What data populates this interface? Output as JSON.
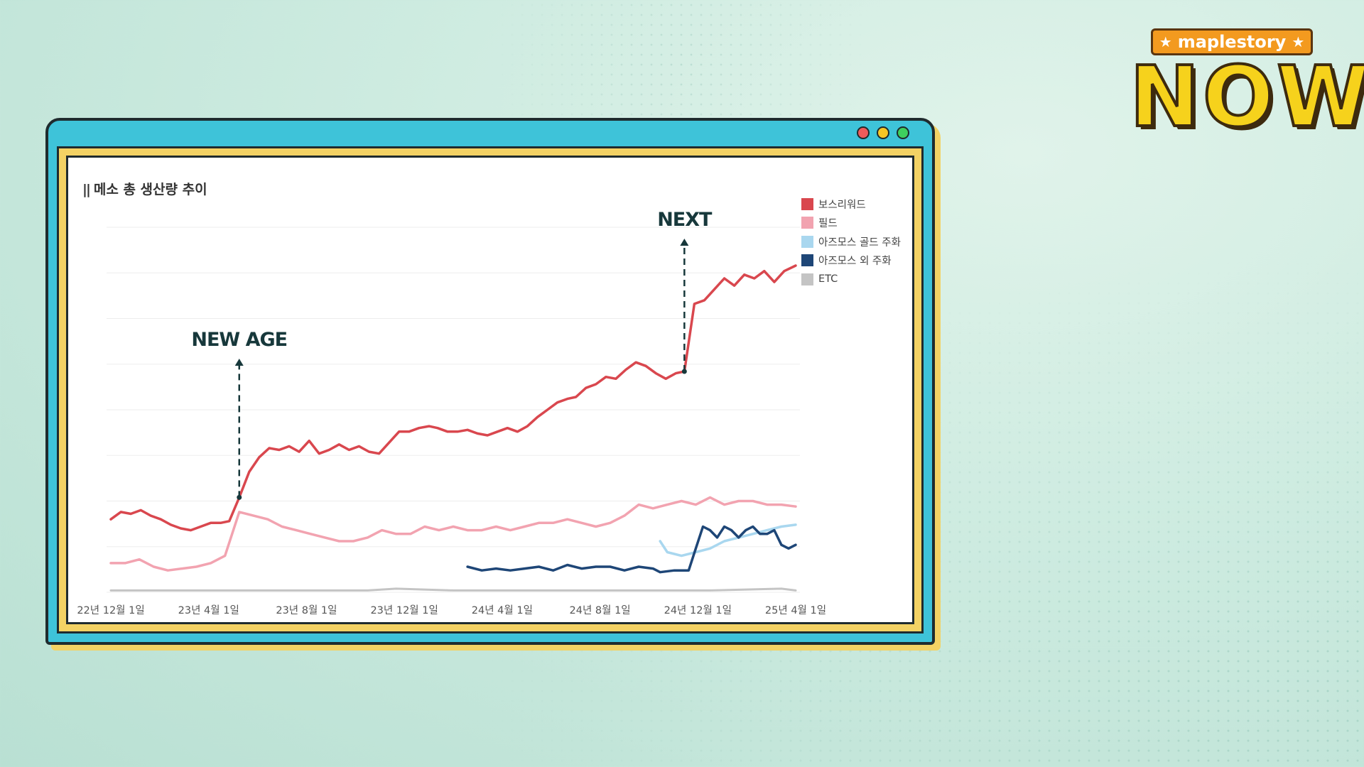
{
  "logo": {
    "badge_text": "maplestory",
    "badge_star": "★",
    "main_text": "NOW"
  },
  "colors": {
    "boss": "#d9474e",
    "field": "#f2a3b0",
    "gold": "#a9d7ef",
    "other": "#1e4677",
    "etc": "#c4c4c4",
    "annotation": "#17383b"
  },
  "chart_data": {
    "type": "line",
    "title": "메소 총 생산량 추이",
    "x_tick_labels": [
      "22년 12월 1일",
      "23년 4월 1일",
      "23년 8월 1일",
      "23년 12월 1일",
      "24년 4월 1일",
      "24년 8월 1일",
      "24년 12월 1일",
      "25년 4월 1일"
    ],
    "legend": [
      "보스리워드",
      "필드",
      "아즈모스 골드 주화",
      "아즈모스 외 주화",
      "ETC"
    ],
    "legend_position": "top-right",
    "grid": "horizontal",
    "ylim": [
      0,
      100
    ],
    "y_values_note_omitted": true,
    "series": [
      {
        "name": "보스리워드",
        "color_key": "boss",
        "points": [
          [
            0.0,
            20
          ],
          [
            0.7,
            22
          ],
          [
            1.4,
            21.5
          ],
          [
            2.1,
            22.5
          ],
          [
            2.8,
            21
          ],
          [
            3.5,
            20
          ],
          [
            4.2,
            18.5
          ],
          [
            4.9,
            17.5
          ],
          [
            5.6,
            17
          ],
          [
            6.3,
            18
          ],
          [
            7.0,
            19
          ],
          [
            7.7,
            19
          ],
          [
            8.3,
            19.5
          ],
          [
            9.0,
            26
          ],
          [
            9.7,
            33
          ],
          [
            10.4,
            37
          ],
          [
            11.1,
            39.5
          ],
          [
            11.8,
            39
          ],
          [
            12.5,
            40
          ],
          [
            13.2,
            38.5
          ],
          [
            13.9,
            41.5
          ],
          [
            14.6,
            38
          ],
          [
            15.3,
            39
          ],
          [
            16.0,
            40.5
          ],
          [
            16.7,
            39
          ],
          [
            17.4,
            40
          ],
          [
            18.1,
            38.5
          ],
          [
            18.8,
            38
          ],
          [
            19.5,
            41
          ],
          [
            20.2,
            44
          ],
          [
            20.9,
            44
          ],
          [
            21.6,
            45
          ],
          [
            22.3,
            45.5
          ],
          [
            22.9,
            45
          ],
          [
            23.6,
            44
          ],
          [
            24.3,
            44
          ],
          [
            25.0,
            44.5
          ],
          [
            25.7,
            43.5
          ],
          [
            26.4,
            43
          ],
          [
            27.1,
            44
          ],
          [
            27.8,
            45
          ],
          [
            28.5,
            44
          ],
          [
            29.2,
            45.5
          ],
          [
            29.9,
            48
          ],
          [
            30.6,
            50
          ],
          [
            31.3,
            52
          ],
          [
            32.0,
            53
          ],
          [
            32.6,
            53.5
          ],
          [
            33.3,
            56
          ],
          [
            34.0,
            57
          ],
          [
            34.7,
            59
          ],
          [
            35.4,
            58.5
          ],
          [
            36.1,
            61
          ],
          [
            36.8,
            63
          ],
          [
            37.5,
            62
          ],
          [
            38.2,
            60
          ],
          [
            38.9,
            58.5
          ],
          [
            39.6,
            60
          ],
          [
            40.2,
            60.5
          ],
          [
            40.9,
            79
          ],
          [
            41.6,
            80
          ],
          [
            42.3,
            83
          ],
          [
            43.0,
            86
          ],
          [
            43.7,
            84
          ],
          [
            44.4,
            87
          ],
          [
            45.1,
            86
          ],
          [
            45.8,
            88
          ],
          [
            46.5,
            85
          ],
          [
            47.2,
            88
          ],
          [
            48.0,
            89.5
          ]
        ]
      },
      {
        "name": "필드",
        "color_key": "field",
        "points": [
          [
            0,
            8
          ],
          [
            1,
            8
          ],
          [
            2,
            9
          ],
          [
            3,
            7
          ],
          [
            4,
            6
          ],
          [
            5,
            6.5
          ],
          [
            6,
            7
          ],
          [
            7,
            8
          ],
          [
            8,
            10
          ],
          [
            9,
            22
          ],
          [
            10,
            21
          ],
          [
            11,
            20
          ],
          [
            12,
            18
          ],
          [
            13,
            17
          ],
          [
            14,
            16
          ],
          [
            15,
            15
          ],
          [
            16,
            14
          ],
          [
            17,
            14
          ],
          [
            18,
            15
          ],
          [
            19,
            17
          ],
          [
            20,
            16
          ],
          [
            21,
            16
          ],
          [
            22,
            18
          ],
          [
            23,
            17
          ],
          [
            24,
            18
          ],
          [
            25,
            17
          ],
          [
            26,
            17
          ],
          [
            27,
            18
          ],
          [
            28,
            17
          ],
          [
            29,
            18
          ],
          [
            30,
            19
          ],
          [
            31,
            19
          ],
          [
            32,
            20
          ],
          [
            33,
            19
          ],
          [
            34,
            18
          ],
          [
            35,
            19
          ],
          [
            36,
            21
          ],
          [
            37,
            24
          ],
          [
            38,
            23
          ],
          [
            39,
            24
          ],
          [
            40,
            25
          ],
          [
            41,
            24
          ],
          [
            42,
            26
          ],
          [
            43,
            24
          ],
          [
            44,
            25
          ],
          [
            45,
            25
          ],
          [
            46,
            24
          ],
          [
            47,
            24
          ],
          [
            48,
            23.5
          ]
        ]
      },
      {
        "name": "아즈모스 골드 주화",
        "color_key": "gold",
        "points": [
          [
            38.5,
            14
          ],
          [
            39,
            11
          ],
          [
            40,
            10
          ],
          [
            41,
            11
          ],
          [
            42,
            12
          ],
          [
            43,
            14
          ],
          [
            44,
            15
          ],
          [
            45,
            16
          ],
          [
            46,
            17
          ],
          [
            47,
            18
          ],
          [
            48,
            18.5
          ]
        ]
      },
      {
        "name": "아즈모스 외 주화",
        "color_key": "other",
        "points": [
          [
            25,
            7
          ],
          [
            26,
            6
          ],
          [
            27,
            6.5
          ],
          [
            28,
            6
          ],
          [
            29,
            6.5
          ],
          [
            30,
            7
          ],
          [
            31,
            6
          ],
          [
            32,
            7.5
          ],
          [
            33,
            6.5
          ],
          [
            34,
            7
          ],
          [
            35,
            7
          ],
          [
            36,
            6
          ],
          [
            37,
            7
          ],
          [
            38,
            6.5
          ],
          [
            38.5,
            5.5
          ],
          [
            39.5,
            6
          ],
          [
            40.5,
            6
          ],
          [
            41,
            12
          ],
          [
            41.5,
            18
          ],
          [
            42,
            17
          ],
          [
            42.5,
            15
          ],
          [
            43,
            18
          ],
          [
            43.5,
            17
          ],
          [
            44,
            15
          ],
          [
            44.5,
            17
          ],
          [
            45,
            18
          ],
          [
            45.5,
            16
          ],
          [
            46,
            16
          ],
          [
            46.5,
            17
          ],
          [
            47,
            13
          ],
          [
            47.5,
            12
          ],
          [
            48,
            13
          ]
        ]
      },
      {
        "name": "ETC",
        "color_key": "etc",
        "points": [
          [
            0,
            0.5
          ],
          [
            6,
            0.5
          ],
          [
            12,
            0.5
          ],
          [
            18,
            0.5
          ],
          [
            20,
            1
          ],
          [
            24,
            0.5
          ],
          [
            30,
            0.5
          ],
          [
            36,
            0.5
          ],
          [
            42,
            0.5
          ],
          [
            47,
            1
          ],
          [
            48,
            0.5
          ]
        ]
      }
    ],
    "annotations": [
      {
        "label": "NEW AGE",
        "x": 9.0
      },
      {
        "label": "NEXT",
        "x": 40.2
      }
    ]
  }
}
